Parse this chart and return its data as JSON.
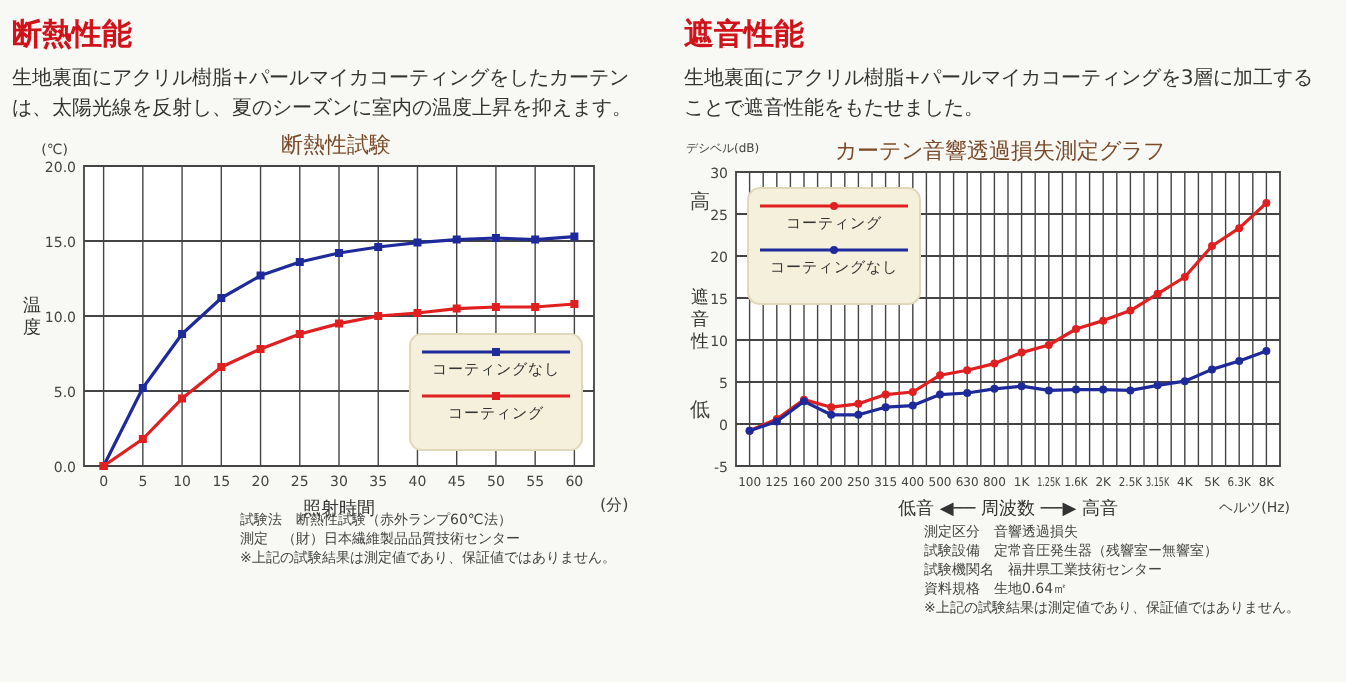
{
  "chart_data": [
    {
      "type": "line",
      "title": "断熱性能",
      "subtitle": "生地裏面にアクリル樹脂+パールマイカコーティングをしたカーテンは、太陽光線を反射し、夏のシーズンに室内の温度上昇を抑えます。",
      "xlabel": "照射時間",
      "ylabel": "温度",
      "annotations": [
        "断熱性試験",
        "(℃)",
        "(分)",
        "試験法　断熱性試験（赤外ランプ60℃法）",
        "測定　（財）日本繊維製品品質技術センター",
        "※上記の試験結果は測定値であり、保証値ではありません。"
      ],
      "x": [
        0,
        5,
        10,
        15,
        20,
        25,
        30,
        35,
        40,
        45,
        50,
        55,
        60
      ],
      "series": [
        {
          "name": "コーティングなし",
          "color": "#1f2a9a",
          "values": [
            0,
            5.2,
            8.8,
            11.2,
            12.7,
            13.6,
            14.2,
            14.6,
            14.9,
            15.1,
            15.2,
            15.1,
            15.3
          ]
        },
        {
          "name": "コーティング",
          "color": "#e02020",
          "values": [
            0,
            1.8,
            4.5,
            6.6,
            7.8,
            8.8,
            9.5,
            10.0,
            10.2,
            10.5,
            10.6,
            10.6,
            10.8
          ]
        }
      ],
      "xlim": [
        -2.5,
        62.5
      ],
      "xticks": [
        0,
        5,
        10,
        15,
        20,
        25,
        30,
        35,
        40,
        45,
        50,
        55,
        60
      ],
      "ylim": [
        0,
        20
      ],
      "yticks": [
        {
          "value": 0,
          "label": "0.0"
        },
        {
          "value": 5,
          "label": "5.0"
        },
        {
          "value": 10,
          "label": "10.0"
        },
        {
          "value": 15,
          "label": "15.0"
        },
        {
          "value": 20,
          "label": "20.0"
        }
      ],
      "grid": true,
      "legend": "bottom right",
      "marker": "square",
      "line_style": "solid"
    },
    {
      "type": "line",
      "title": "遮音性能",
      "subtitle": "生地裏面にアクリル樹脂+パールマイカコーティングを3層に加工することで遮音性能をもたせました。",
      "xlabel": "低音 ◀── 周波数 ──▶ 高音",
      "ylabel": "遮音性",
      "annotations": [
        "カーテン音響透過損失測定グラフ",
        "デシベル(dB)",
        "ヘルツ(Hz)",
        "高",
        "低",
        "測定区分　音響透過損失",
        "試験設備　定常音圧発生器（残響室ー無響室）",
        "試験機関名　福井県工業技術センター",
        "資料規格　生地0.64㎡",
        "※上記の試験結果は測定値であり、保証値ではありません。"
      ],
      "categories": [
        "100",
        "125",
        "160",
        "200",
        "250",
        "315",
        "400",
        "500",
        "630",
        "800",
        "1K",
        "1.25K",
        "1.6K",
        "2K",
        "2.5K",
        "3.15K",
        "4K",
        "5K",
        "6.3K",
        "8K"
      ],
      "series": [
        {
          "name": "コーティング",
          "color": "#e02020",
          "values": [
            -0.8,
            0.6,
            2.9,
            2.0,
            2.4,
            3.5,
            3.8,
            5.8,
            6.4,
            7.2,
            8.5,
            9.4,
            11.3,
            12.3,
            13.5,
            15.5,
            17.5,
            21.2,
            23.3,
            26.3
          ]
        },
        {
          "name": "コーティングなし",
          "color": "#1f2a9a",
          "values": [
            -0.8,
            0.3,
            2.7,
            1.1,
            1.1,
            2.0,
            2.2,
            3.5,
            3.7,
            4.2,
            4.5,
            4.0,
            4.1,
            4.1,
            4.0,
            4.6,
            5.1,
            6.5,
            7.5,
            8.7
          ]
        }
      ],
      "ylim": [
        -5,
        30
      ],
      "yticks": [
        -5,
        0,
        5,
        10,
        15,
        20,
        25,
        30
      ],
      "grid": true,
      "legend": "top left",
      "marker": "circle",
      "line_style": "solid"
    }
  ]
}
